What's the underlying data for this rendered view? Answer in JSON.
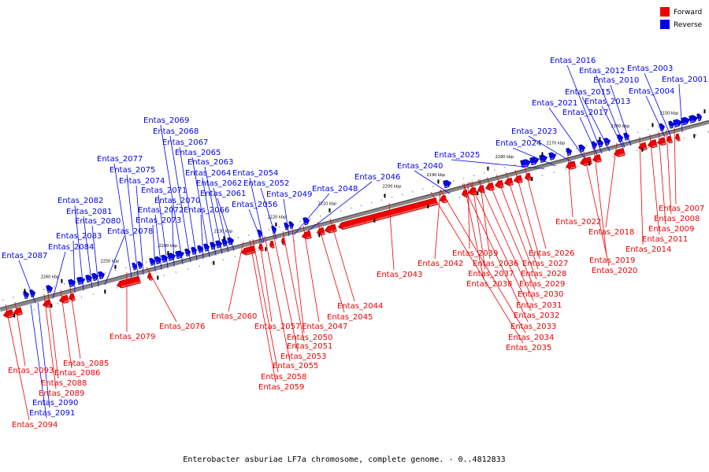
{
  "legend": {
    "forward_label": "Forward",
    "reverse_label": "Reverse",
    "forward_color": "#ee0000",
    "reverse_color": "#0000ee"
  },
  "caption": "Enterobacter asburiae LF7a chromosome, complete genome. - 0..4812833",
  "colors": {
    "backbone": "#888888",
    "forward": "#ee0000",
    "reverse": "#0000ee",
    "forward_dark": "#990000",
    "reverse_dark": "#000088"
  },
  "ticks": [
    "2150 kbp",
    "2160 kbp",
    "2170 kbp",
    "2180 kbp",
    "2190 kbp",
    "2200 kbp",
    "2210 kbp",
    "2220 kbp",
    "2230 kbp",
    "2240 kbp",
    "2250 kbp",
    "2260 kbp"
  ],
  "reverse_labels": [
    "Entas_2001",
    "Entas_2003",
    "Entas_2004",
    "Entas_2010",
    "Entas_2012",
    "Entas_2013",
    "Entas_2015",
    "Entas_2016",
    "Entas_2017",
    "Entas_2021",
    "Entas_2023",
    "Entas_2024",
    "Entas_2025",
    "Entas_2040",
    "Entas_2046",
    "Entas_2048",
    "Entas_2049",
    "Entas_2052",
    "Entas_2054",
    "Entas_2056",
    "Entas_2061",
    "Entas_2062",
    "Entas_2063",
    "Entas_2064",
    "Entas_2065",
    "Entas_2066",
    "Entas_2067",
    "Entas_2068",
    "Entas_2069",
    "Entas_2070",
    "Entas_2071",
    "Entas_2072",
    "Entas_2073",
    "Entas_2074",
    "Entas_2075",
    "Entas_2077",
    "Entas_2078",
    "Entas_2080",
    "Entas_2081",
    "Entas_2082",
    "Entas_2083",
    "Entas_2084",
    "Entas_2087",
    "Entas_2090",
    "Entas_2091"
  ],
  "forward_labels": [
    "Entas_2007",
    "Entas_2008",
    "Entas_2009",
    "Entas_2011",
    "Entas_2014",
    "Entas_2018",
    "Entas_2019",
    "Entas_2020",
    "Entas_2022",
    "Entas_2026",
    "Entas_2027",
    "Entas_2028",
    "Entas_2029",
    "Entas_2030",
    "Entas_2031",
    "Entas_2032",
    "Entas_2033",
    "Entas_2034",
    "Entas_2035",
    "Entas_2036",
    "Entas_2037",
    "Entas_2038",
    "Entas_2039",
    "Entas_2042",
    "Entas_2043",
    "Entas_2044",
    "Entas_2045",
    "Entas_2047",
    "Entas_2050",
    "Entas_2051",
    "Entas_2053",
    "Entas_2055",
    "Entas_2057",
    "Entas_2058",
    "Entas_2059",
    "Entas_2060",
    "Entas_2076",
    "Entas_2079",
    "Entas_2085",
    "Entas_2086",
    "Entas_2088",
    "Entas_2089",
    "Entas_2093",
    "Entas_2094"
  ]
}
